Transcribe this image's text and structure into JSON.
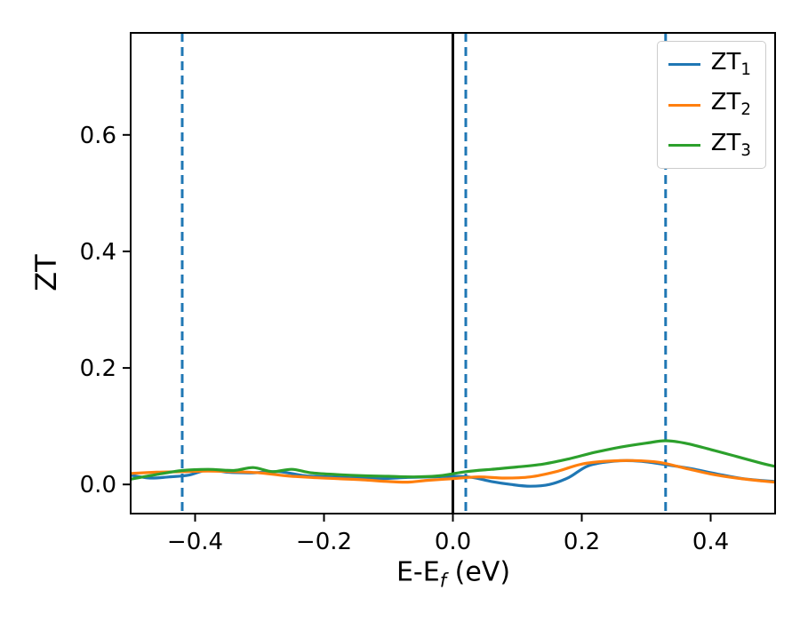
{
  "chart_data": {
    "type": "line",
    "title": "",
    "xlabel_base": "E-E",
    "xlabel_sub": "f",
    "xlabel_suffix": " (eV)",
    "ylabel": "ZT",
    "xlim": [
      -0.5,
      0.5
    ],
    "ylim": [
      -0.05,
      0.775
    ],
    "xticks": [
      -0.4,
      -0.2,
      0.0,
      0.2,
      0.4
    ],
    "xtick_labels": [
      "−0.4",
      "−0.2",
      "0.0",
      "0.2",
      "0.4"
    ],
    "yticks": [
      0.0,
      0.2,
      0.4,
      0.6
    ],
    "ytick_labels": [
      "0.0",
      "0.2",
      "0.4",
      "0.6"
    ],
    "grid": false,
    "legend": {
      "position": "upper right"
    },
    "axvlines_dashed": {
      "x": [
        -0.42,
        0.02,
        0.33
      ],
      "color": "#1f77b4",
      "style": "dashed"
    },
    "axvline_solid": {
      "x": 0.0,
      "color": "#000000",
      "style": "solid"
    },
    "series": [
      {
        "label_base": "ZT",
        "label_sub": "1",
        "color": "#1f77b4",
        "x": [
          -0.5,
          -0.47,
          -0.44,
          -0.41,
          -0.38,
          -0.35,
          -0.31,
          -0.27,
          -0.23,
          -0.19,
          -0.15,
          -0.11,
          -0.07,
          -0.03,
          0.0,
          0.03,
          0.06,
          0.09,
          0.12,
          0.15,
          0.18,
          0.21,
          0.25,
          0.29,
          0.33,
          0.37,
          0.41,
          0.45,
          0.5
        ],
        "y": [
          0.016,
          0.011,
          0.013,
          0.016,
          0.025,
          0.021,
          0.02,
          0.022,
          0.015,
          0.013,
          0.011,
          0.01,
          0.012,
          0.013,
          0.014,
          0.012,
          0.005,
          0.0,
          -0.003,
          0.0,
          0.012,
          0.032,
          0.04,
          0.04,
          0.034,
          0.027,
          0.018,
          0.01,
          0.005
        ]
      },
      {
        "label_base": "ZT",
        "label_sub": "2",
        "color": "#ff7f0e",
        "x": [
          -0.5,
          -0.46,
          -0.42,
          -0.38,
          -0.34,
          -0.3,
          -0.26,
          -0.22,
          -0.18,
          -0.14,
          -0.1,
          -0.07,
          -0.04,
          0.0,
          0.04,
          0.08,
          0.12,
          0.16,
          0.2,
          0.24,
          0.28,
          0.32,
          0.36,
          0.4,
          0.44,
          0.48,
          0.5
        ],
        "y": [
          0.019,
          0.021,
          0.022,
          0.023,
          0.022,
          0.02,
          0.015,
          0.012,
          0.01,
          0.008,
          0.005,
          0.004,
          0.007,
          0.01,
          0.013,
          0.011,
          0.013,
          0.022,
          0.035,
          0.04,
          0.041,
          0.038,
          0.028,
          0.018,
          0.011,
          0.006,
          0.004
        ]
      },
      {
        "label_base": "ZT",
        "label_sub": "3",
        "color": "#2ca02c",
        "x": [
          -0.5,
          -0.46,
          -0.42,
          -0.38,
          -0.34,
          -0.31,
          -0.28,
          -0.25,
          -0.22,
          -0.18,
          -0.14,
          -0.1,
          -0.06,
          -0.02,
          0.02,
          0.06,
          0.1,
          0.14,
          0.18,
          0.22,
          0.26,
          0.3,
          0.33,
          0.36,
          0.4,
          0.44,
          0.48,
          0.5
        ],
        "y": [
          0.009,
          0.017,
          0.024,
          0.026,
          0.024,
          0.029,
          0.022,
          0.026,
          0.02,
          0.017,
          0.015,
          0.014,
          0.013,
          0.015,
          0.022,
          0.026,
          0.03,
          0.035,
          0.044,
          0.055,
          0.064,
          0.071,
          0.075,
          0.071,
          0.06,
          0.048,
          0.036,
          0.031
        ]
      }
    ]
  },
  "colors": {
    "background": "#ffffff",
    "spine": "#000000",
    "tick": "#000000",
    "legend_border": "#cccccc"
  }
}
